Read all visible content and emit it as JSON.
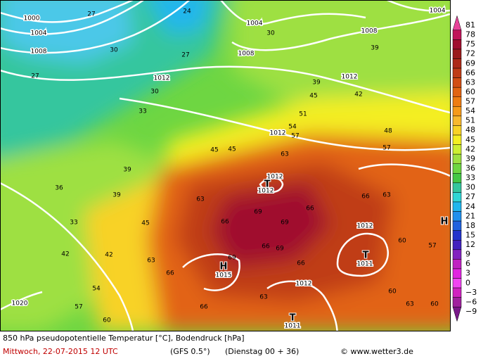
{
  "map": {
    "footer": {
      "title": "850 hPa pseudopotentielle Temperatur [°C], Bodendruck [hPa]",
      "date": "Mittwoch, 22-07-2015  12 UTC",
      "model": "(GFS 0.5°)",
      "run": "(Dienstag 00 + 36)",
      "credit": "© www.wetter3.de"
    },
    "legend": {
      "labels": [
        "81",
        "78",
        "75",
        "72",
        "69",
        "66",
        "63",
        "60",
        "57",
        "54",
        "51",
        "48",
        "45",
        "42",
        "39",
        "36",
        "33",
        "30",
        "27",
        "24",
        "21",
        "18",
        "15",
        "12",
        "9",
        "6",
        "3",
        "0",
        "−3",
        "−6",
        "−9"
      ],
      "colors": [
        "#e8449a",
        "#c0145a",
        "#a00e2e",
        "#9a1a1c",
        "#ad2a18",
        "#c03c16",
        "#d24e14",
        "#e26412",
        "#ee7c12",
        "#f69a1a",
        "#f8b82e",
        "#f8d226",
        "#f4ee22",
        "#cdee32",
        "#9ee042",
        "#6ed642",
        "#44c846",
        "#34c69e",
        "#30d6d6",
        "#20b6ee",
        "#2090ee",
        "#2062de",
        "#2234cc",
        "#4222be",
        "#8222c0",
        "#c022c2",
        "#e024e0",
        "#f044f0",
        "#d022c0",
        "#a0229e",
        "#7a1a8a"
      ]
    },
    "isobar_labels": [
      "1000",
      "1004",
      "1008",
      "1004",
      "1008",
      "1008",
      "1004",
      "1012",
      "1012",
      "1012",
      "1012",
      "1012",
      "1012",
      "1011",
      "1012",
      "1011",
      "1015",
      "1020"
    ],
    "pressure_centers": [
      "T",
      "T",
      "T",
      "H",
      "H"
    ],
    "theta_labels": [
      "27",
      "24",
      "30",
      "27",
      "30",
      "27",
      "30",
      "33",
      "39",
      "39",
      "42",
      "45",
      "48",
      "51",
      "54",
      "57",
      "63",
      "45",
      "45",
      "39",
      "36",
      "39",
      "33",
      "42",
      "42",
      "45",
      "63",
      "66",
      "69",
      "69",
      "66",
      "66",
      "69",
      "69",
      "66",
      "63",
      "66",
      "63",
      "66",
      "60",
      "57",
      "54",
      "63",
      "57",
      "60",
      "60",
      "63",
      "60",
      "66",
      "57"
    ]
  }
}
